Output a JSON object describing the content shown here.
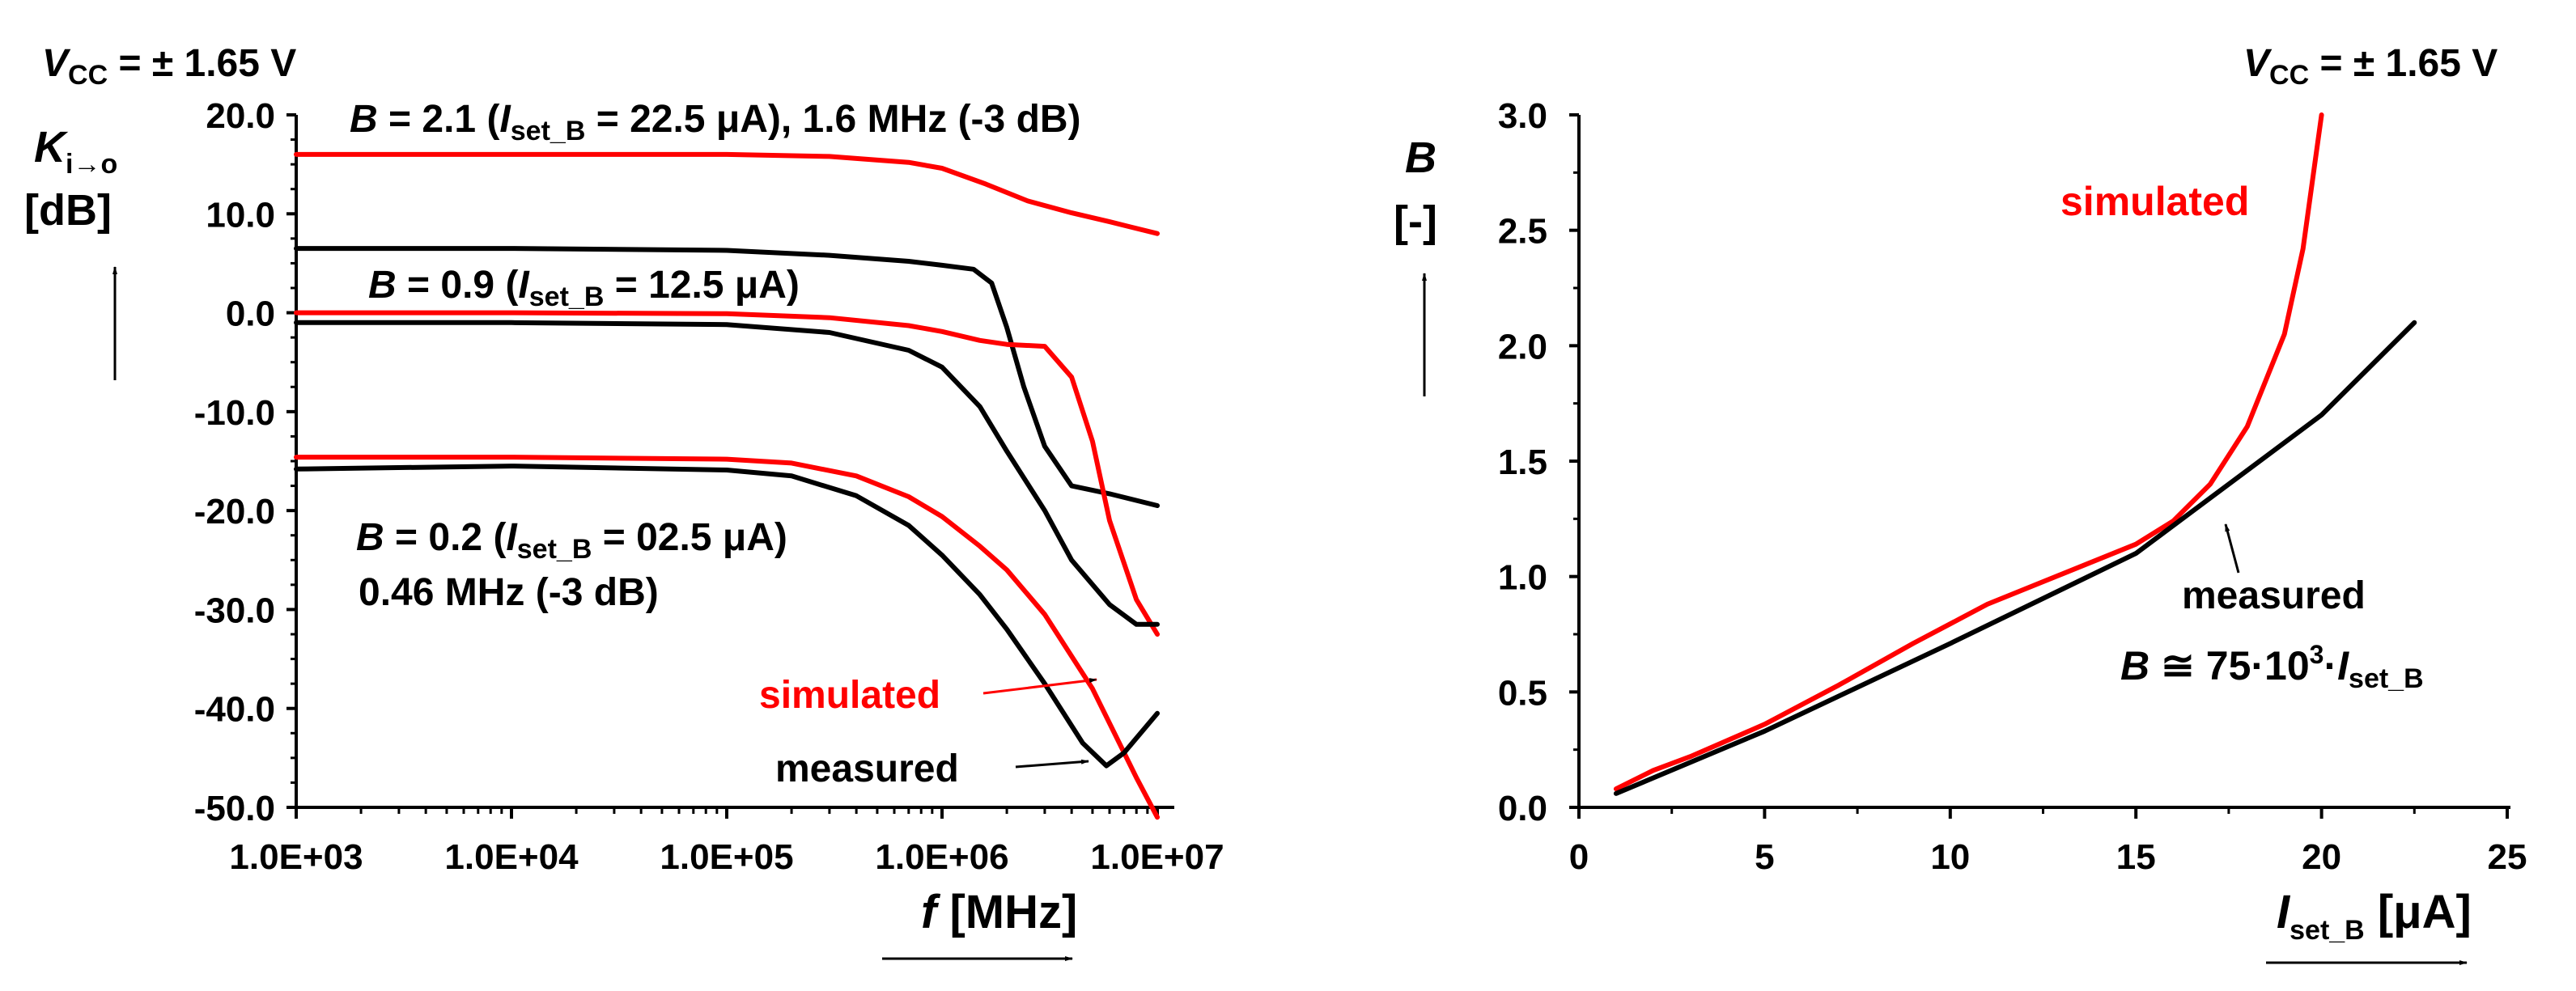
{
  "colors": {
    "measured": "#000000",
    "simulated": "#ff0000",
    "axis": "#000000"
  },
  "chart_data": [
    {
      "type": "line",
      "title": "",
      "supply": {
        "symbol": "V",
        "sub": "CC",
        "text": " = ± 1.65 V"
      },
      "ylabel": {
        "symbol": "K",
        "sub": "i→o",
        "unit": "[dB]"
      },
      "xlabel": {
        "symbol": "f",
        "unit": " [MHz]"
      },
      "xscale": "log",
      "xlim": [
        1000,
        10000000
      ],
      "ylim": [
        -50,
        20
      ],
      "x_ticks": [
        "1.0E+03",
        "1.0E+04",
        "1.0E+05",
        "1.0E+06",
        "1.0E+07"
      ],
      "y_ticks": [
        "20.0",
        "10.0",
        "0.0",
        "-10.0",
        "-20.0",
        "-30.0",
        "-40.0",
        "-50.0"
      ],
      "annotations": {
        "b21": {
          "B": "B",
          "eq": " = 2.1 (",
          "I": "I",
          "sub": "set_B",
          "rest": " = 22.5 μA), 1.6 MHz (-3 dB)"
        },
        "b09": {
          "B": "B",
          "eq": " = 0.9 (",
          "I": "I",
          "sub": "set_B",
          "rest": " = 12.5 μA)"
        },
        "b02": {
          "B": "B",
          "eq": " = 0.2 (",
          "I": "I",
          "sub": "set_B",
          "rest": " = 02.5 μA)"
        },
        "b02_bw": "0.46 MHz (-3 dB)",
        "simulated": "simulated",
        "measured": "measured"
      },
      "series": [
        {
          "name": "B = 2.1 simulated",
          "kind": "simulated",
          "x": [
            1000,
            10000,
            100000,
            300000,
            700000,
            1000000,
            1600000,
            2500000,
            4000000,
            6000000,
            10000000
          ],
          "y": [
            16.0,
            16.0,
            16.0,
            15.8,
            15.2,
            14.6,
            13.0,
            11.3,
            10.1,
            9.2,
            8.0
          ]
        },
        {
          "name": "B = 2.1 measured",
          "kind": "measured",
          "x": [
            1000,
            10000,
            100000,
            300000,
            700000,
            1000000,
            1400000,
            1700000,
            2000000,
            2400000,
            3000000,
            4000000,
            6000000,
            10000000
          ],
          "y": [
            6.5,
            6.5,
            6.3,
            5.8,
            5.2,
            4.8,
            4.4,
            3.0,
            -1.5,
            -7.5,
            -13.5,
            -17.5,
            -18.3,
            -19.5
          ]
        },
        {
          "name": "B = 0.9 simulated",
          "kind": "simulated",
          "x": [
            1000,
            10000,
            100000,
            300000,
            700000,
            1000000,
            1500000,
            2000000,
            3000000,
            4000000,
            5000000,
            6000000,
            8000000,
            10000000
          ],
          "y": [
            0.0,
            0.0,
            -0.1,
            -0.5,
            -1.3,
            -1.9,
            -2.8,
            -3.2,
            -3.4,
            -6.5,
            -13.0,
            -21.0,
            -29.0,
            -32.5
          ]
        },
        {
          "name": "B = 0.9 measured",
          "kind": "measured",
          "x": [
            1000,
            10000,
            100000,
            300000,
            700000,
            1000000,
            1500000,
            2000000,
            3000000,
            4000000,
            6000000,
            8000000,
            10000000
          ],
          "y": [
            -1.0,
            -1.0,
            -1.2,
            -2.0,
            -3.8,
            -5.5,
            -9.5,
            -14.0,
            -20.0,
            -25.0,
            -29.5,
            -31.5,
            -31.5
          ]
        },
        {
          "name": "B = 0.2 simulated",
          "kind": "simulated",
          "x": [
            1000,
            10000,
            100000,
            200000,
            400000,
            700000,
            1000000,
            1500000,
            2000000,
            3000000,
            5000000,
            8000000,
            10000000
          ],
          "y": [
            -14.6,
            -14.6,
            -14.8,
            -15.2,
            -16.5,
            -18.6,
            -20.6,
            -23.6,
            -26.0,
            -30.5,
            -38.0,
            -47.0,
            -51.0
          ]
        },
        {
          "name": "B = 0.2 measured",
          "kind": "measured",
          "x": [
            1000,
            10000,
            100000,
            200000,
            400000,
            700000,
            1000000,
            1500000,
            2000000,
            3000000,
            4500000,
            5800000,
            7000000,
            10000000
          ],
          "y": [
            -15.8,
            -15.5,
            -15.9,
            -16.5,
            -18.5,
            -21.5,
            -24.5,
            -28.5,
            -32.0,
            -37.5,
            -43.5,
            -45.8,
            -44.5,
            -40.5
          ]
        }
      ]
    },
    {
      "type": "line",
      "title": "",
      "supply": {
        "symbol": "V",
        "sub": "CC",
        "text": " = ± 1.65 V"
      },
      "ylabel": {
        "symbol": "B",
        "unit": "[-]"
      },
      "xlabel": {
        "symbol": "I",
        "sub": "set_B",
        "unit": " [μA]"
      },
      "xlim": [
        0,
        25
      ],
      "ylim": [
        0,
        3
      ],
      "x_ticks": [
        "0",
        "5",
        "10",
        "15",
        "20",
        "25"
      ],
      "y_ticks": [
        "3.0",
        "2.5",
        "2.0",
        "1.5",
        "1.0",
        "0.5",
        "0.0"
      ],
      "annotations": {
        "simulated": "simulated",
        "measured": "measured",
        "formula": {
          "B": "B",
          "approx": " ≅ 75·10",
          "exp": "3",
          "dot": "·",
          "I": "I",
          "sub": "set_B"
        }
      },
      "series": [
        {
          "name": "simulated",
          "kind": "simulated",
          "x": [
            1,
            2,
            3,
            5,
            7,
            9,
            11,
            13,
            15,
            16,
            17,
            18,
            19,
            19.5,
            20
          ],
          "y": [
            0.08,
            0.16,
            0.22,
            0.36,
            0.53,
            0.71,
            0.88,
            1.01,
            1.14,
            1.24,
            1.4,
            1.65,
            2.05,
            2.42,
            3.0
          ]
        },
        {
          "name": "measured",
          "kind": "measured",
          "x": [
            1,
            5,
            10,
            15,
            20,
            22.5
          ],
          "y": [
            0.06,
            0.33,
            0.71,
            1.1,
            1.7,
            2.1
          ]
        }
      ]
    }
  ]
}
